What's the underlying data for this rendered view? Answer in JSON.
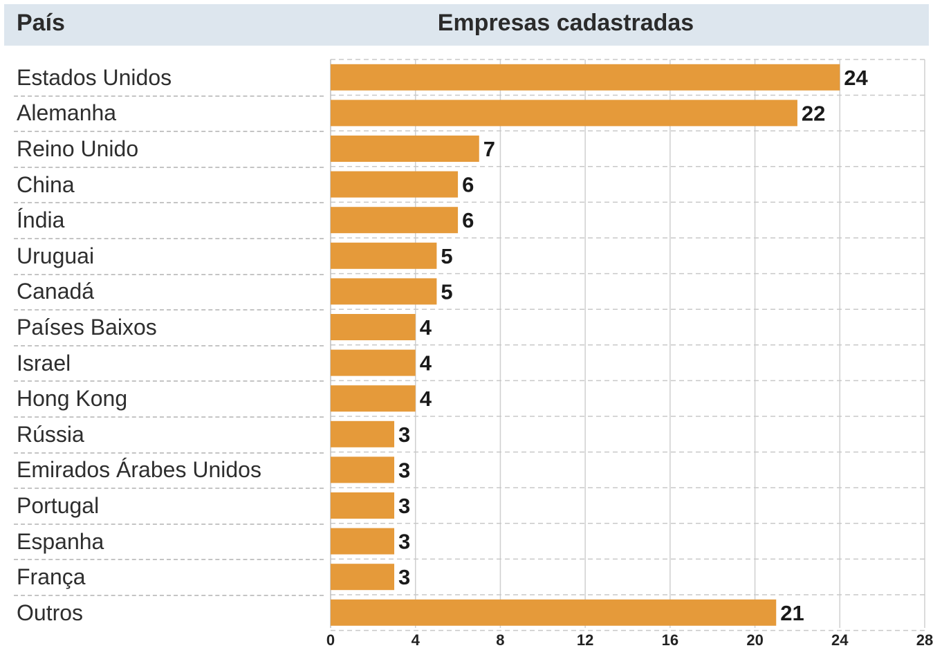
{
  "header": {
    "country_label": "País",
    "metric_label": "Empresas cadastradas"
  },
  "chart_data": {
    "type": "bar",
    "orientation": "horizontal",
    "categories": [
      "Estados Unidos",
      "Alemanha",
      "Reino Unido",
      "China",
      "Índia",
      "Uruguai",
      "Canadá",
      "Países Baixos",
      "Israel",
      "Hong Kong",
      "Rússia",
      "Emirados Árabes Unidos",
      "Portugal",
      "Espanha",
      "França",
      "Outros"
    ],
    "values": [
      24,
      22,
      7,
      6,
      6,
      5,
      5,
      4,
      4,
      4,
      3,
      3,
      3,
      3,
      3,
      21
    ],
    "xlim": [
      0,
      28
    ],
    "xticks": [
      0,
      4,
      8,
      12,
      16,
      20,
      24,
      28
    ],
    "bar_color": "#e59a3a",
    "grid": true,
    "data_labels": true
  }
}
